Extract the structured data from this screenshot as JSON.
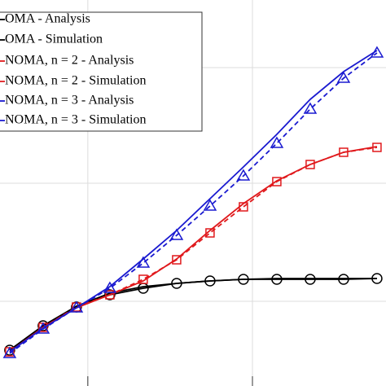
{
  "chart_data": {
    "type": "line",
    "x": [
      1,
      2,
      3,
      4,
      5,
      6,
      7,
      8,
      9,
      10,
      11,
      12
    ],
    "xlim": [
      0.71,
      12.27
    ],
    "xticks": [
      3.34,
      8.27
    ],
    "ylim": [
      0,
      47.4
    ],
    "yticks": [
      10.4,
      24.9,
      39.1
    ],
    "grid": true,
    "legend": "upper left",
    "series": [
      {
        "name": "OMA - Analysis",
        "color": "#000000",
        "marker": null,
        "dashed": false,
        "values": [
          4.4,
          7.4,
          9.8,
          11.4,
          12.2,
          12.6,
          12.9,
          13.1,
          13.2,
          13.2,
          13.2,
          13.2
        ]
      },
      {
        "name": "OMA - Simulation",
        "color": "#000000",
        "marker": "circle",
        "dashed": false,
        "values": [
          4.4,
          7.4,
          9.7,
          11.2,
          12.0,
          12.6,
          12.9,
          13.1,
          13.1,
          13.1,
          13.1,
          13.2
        ]
      },
      {
        "name": "NOMA, n = 2 - Analysis",
        "color": "#e0191c",
        "marker": null,
        "dashed": false,
        "values": [
          4.2,
          7.2,
          9.6,
          11.2,
          12.9,
          15.6,
          19.1,
          22.4,
          25.2,
          27.2,
          28.7,
          29.4
        ]
      },
      {
        "name": "NOMA, n = 2 - Simulation",
        "color": "#e0191c",
        "marker": "square",
        "dashed": true,
        "values": [
          4.2,
          7.2,
          9.7,
          11.2,
          13.1,
          15.5,
          18.8,
          22.0,
          25.1,
          27.2,
          28.7,
          29.3
        ]
      },
      {
        "name": "NOMA, n = 3 - Analysis",
        "color": "#1a1ad0",
        "marker": null,
        "dashed": false,
        "values": [
          4.2,
          7.1,
          9.6,
          12.2,
          15.6,
          19.1,
          23.0,
          26.9,
          30.9,
          35.2,
          38.6,
          41.2
        ]
      },
      {
        "name": "NOMA, n = 3 - Simulation",
        "color": "#1a1ad0",
        "marker": "triangle",
        "dashed": true,
        "values": [
          4.0,
          7.0,
          9.6,
          12.0,
          15.1,
          18.5,
          22.1,
          25.8,
          29.8,
          34.0,
          37.8,
          40.9
        ]
      }
    ]
  }
}
